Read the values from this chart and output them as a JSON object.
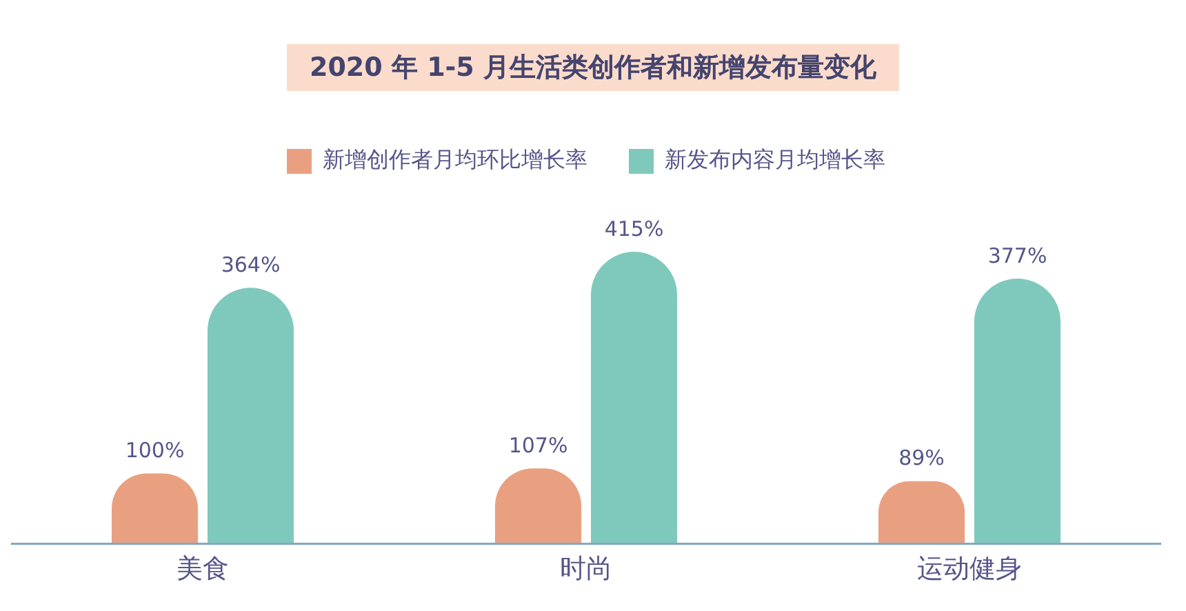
{
  "chart_data": {
    "type": "bar",
    "title": "2020 年 1-5 月生活类创作者和新增发布量变化",
    "categories": [
      "美食",
      "时尚",
      "运动健身"
    ],
    "series": [
      {
        "name": "新增创作者月均环比增长率",
        "color": "#e9a080",
        "values": [
          100,
          107,
          89
        ],
        "value_labels": [
          "100%",
          "107%",
          "89%"
        ]
      },
      {
        "name": "新发布内容月均增长率",
        "color": "#7fc9bc",
        "values": [
          364,
          415,
          377
        ],
        "value_labels": [
          "364%",
          "415%",
          "377%"
        ]
      }
    ],
    "legend": "top",
    "grid": false
  }
}
